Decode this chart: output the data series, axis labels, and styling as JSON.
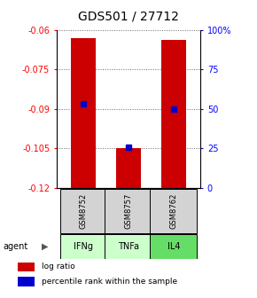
{
  "title": "GDS501 / 27712",
  "samples": [
    "GSM8752",
    "GSM8757",
    "GSM8762"
  ],
  "agents": [
    "IFNg",
    "TNFa",
    "IL4"
  ],
  "bar_tops": [
    -0.063,
    -0.105,
    -0.064
  ],
  "bar_bottom": -0.12,
  "percentile_values": [
    -0.088,
    -0.1045,
    -0.09
  ],
  "bar_color": "#cc0000",
  "percentile_color": "#0000cc",
  "left_ylim": [
    -0.12,
    -0.06
  ],
  "left_yticks": [
    -0.12,
    -0.105,
    -0.09,
    -0.075,
    -0.06
  ],
  "left_yticklabels": [
    "-0.12",
    "-0.105",
    "-0.09",
    "-0.075",
    "-0.06"
  ],
  "right_yticks": [
    0,
    25,
    50,
    75,
    100
  ],
  "right_yticklabels": [
    "0",
    "25",
    "50",
    "75",
    "100%"
  ],
  "right_ylim": [
    0,
    100
  ],
  "agent_colors": [
    "#ccffcc",
    "#ccffcc",
    "#66dd66"
  ],
  "sample_bg": "#d3d3d3",
  "title_fontsize": 10,
  "bar_width": 0.55
}
